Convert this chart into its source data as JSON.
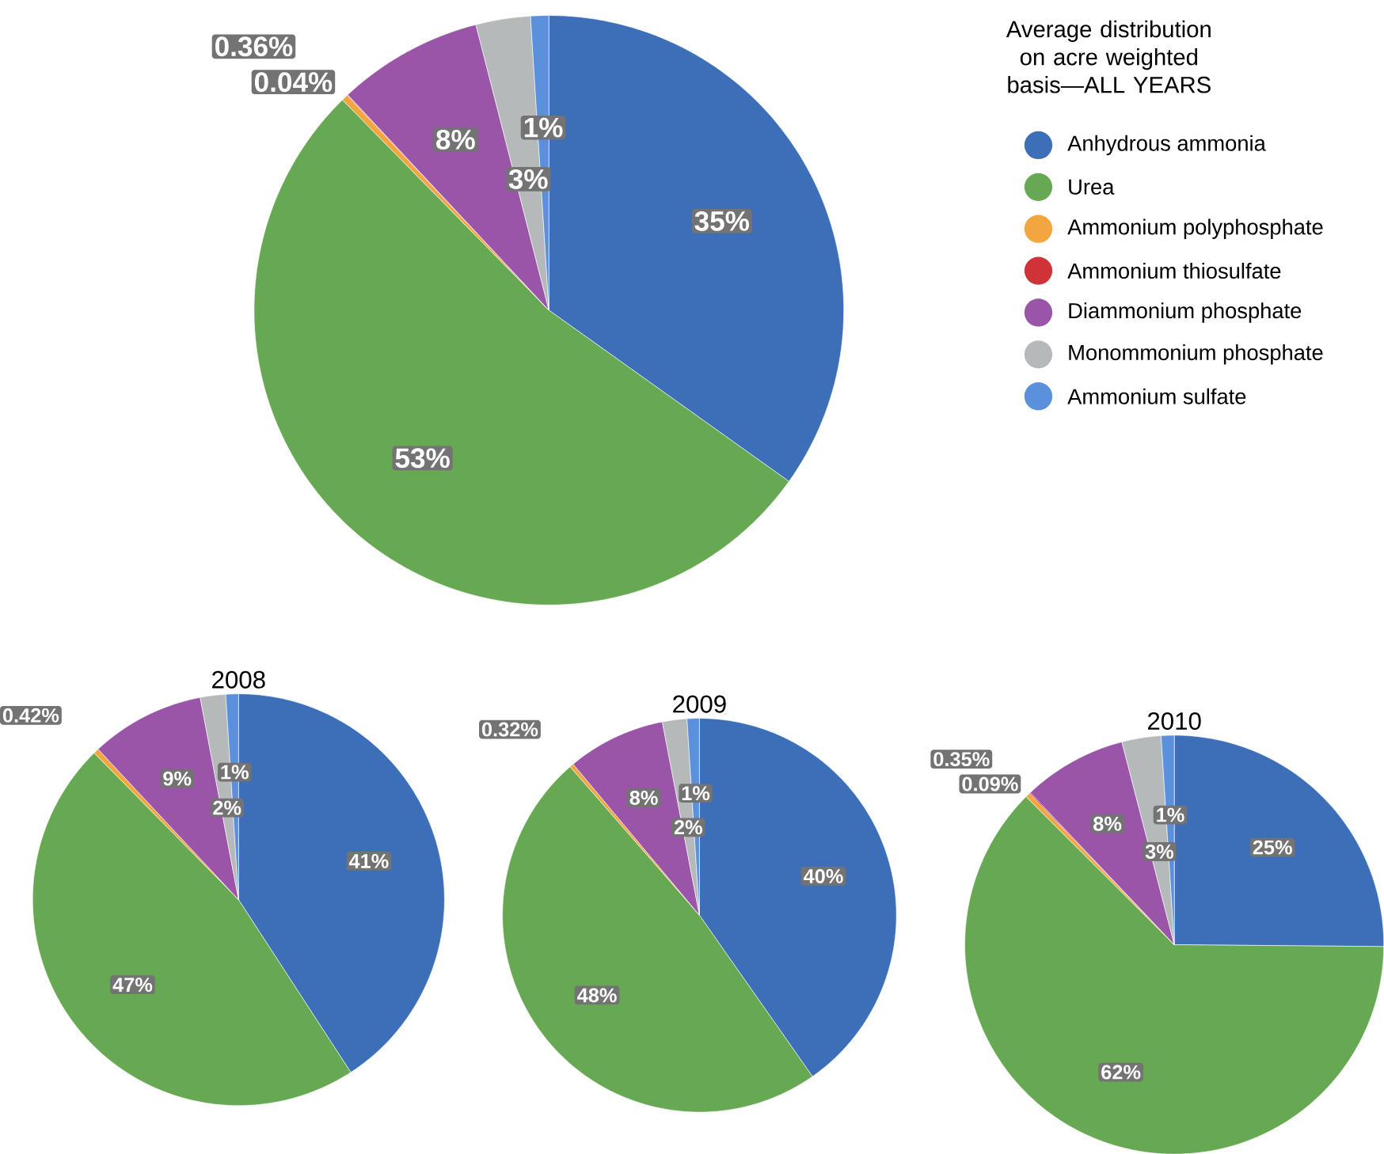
{
  "chart_data": [
    {
      "type": "pie",
      "title": "Average distribution on acre weighted basis—ALL YEARS",
      "legend": "right",
      "categories": [
        "Anhydrous ammonia",
        "Urea",
        "Ammonium polyphosphate",
        "Ammonium thiosulfate",
        "Diammonium phosphate",
        "Monommonium phosphate",
        "Ammonium sulfate"
      ],
      "values": [
        35,
        53,
        0.36,
        0.04,
        8,
        3,
        1
      ],
      "colors": [
        "#3c6fb8",
        "#67a853",
        "#f3a53f",
        "#cf3338",
        "#9a55a8",
        "#b6b9b9",
        "#5b90dc"
      ],
      "value_labels": [
        "35%",
        "53%",
        "0.36%",
        "0.04%",
        "8%",
        "3%",
        "1%"
      ]
    },
    {
      "type": "pie",
      "title": "2008",
      "categories": [
        null,
        null,
        null,
        null,
        null,
        null
      ],
      "values": [
        41,
        47,
        0.42,
        9,
        2,
        1
      ],
      "colors": [
        "#3c6fb8",
        "#67a853",
        "#f3a53f",
        "#9a55a8",
        "#b6b9b9",
        "#5b90dc"
      ],
      "value_labels": [
        "41%",
        "47%",
        "0.42%",
        "9%",
        "2%",
        "1%"
      ]
    },
    {
      "type": "pie",
      "title": "2009",
      "categories": [
        null,
        null,
        null,
        null,
        null,
        null
      ],
      "values": [
        40,
        48,
        0.32,
        8,
        2,
        1
      ],
      "colors": [
        "#3c6fb8",
        "#67a853",
        "#f3a53f",
        "#9a55a8",
        "#b6b9b9",
        "#5b90dc"
      ],
      "value_labels": [
        "40%",
        "48%",
        "0.32%",
        "8%",
        "2%",
        "1%"
      ]
    },
    {
      "type": "pie",
      "title": "2010",
      "categories": [
        null,
        null,
        null,
        null,
        null,
        null,
        null
      ],
      "values": [
        25,
        62,
        0.35,
        0.09,
        8,
        3,
        1
      ],
      "colors": [
        "#3c6fb8",
        "#67a853",
        "#f3a53f",
        "#cf3338",
        "#9a55a8",
        "#b6b9b9",
        "#5b90dc"
      ],
      "value_labels": [
        "25%",
        "62%",
        "0.35%",
        "0.09%",
        "8%",
        "3%",
        "1%"
      ]
    }
  ]
}
